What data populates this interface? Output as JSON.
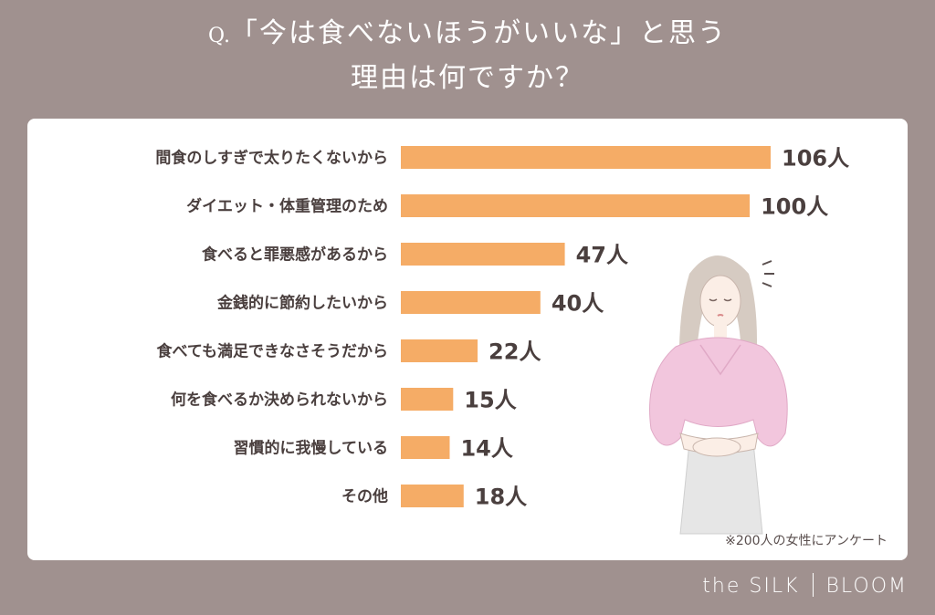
{
  "title": {
    "q": "Q.",
    "line1": "「今は食べないほうがいいな」と思う",
    "line2": "理由は何ですか？"
  },
  "note": "※200人の女性にアンケート",
  "brand": {
    "left": "the SILK",
    "right": "BLOOM"
  },
  "colors": {
    "bar": "#f5ac66",
    "background": "#a0918f",
    "label": "#4a3f3e"
  },
  "chart_data": {
    "type": "bar",
    "orientation": "horizontal",
    "categories": [
      "間食のしすぎで太りたくないから",
      "ダイエット・体重管理のため",
      "食べると罪悪感があるから",
      "金銭的に節約したいから",
      "食べても満足できなさそうだから",
      "何を食べるか決められないから",
      "習慣的に我慢している",
      "その他"
    ],
    "values": [
      106,
      100,
      47,
      40,
      22,
      15,
      14,
      18
    ],
    "value_labels": [
      "106人",
      "100人",
      "47人",
      "40人",
      "22人",
      "15人",
      "14人",
      "18人"
    ],
    "unit": "人",
    "xlim": [
      0,
      106
    ]
  }
}
